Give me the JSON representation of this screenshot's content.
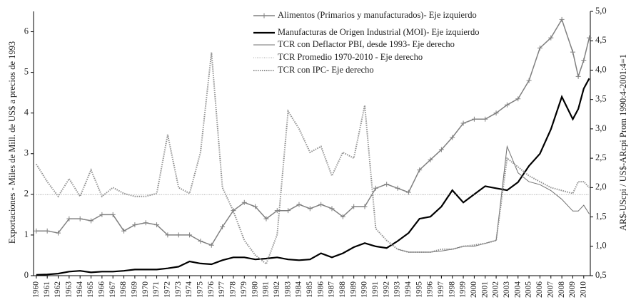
{
  "chart_data": {
    "type": "line",
    "y_label": "Exportaciones - Miles de Mill. de US$ a precios de 1993",
    "y2_label": "AR$-UScpi / US$-ARcpi  Prom 1990:4-2001:4=1",
    "x": [
      1960,
      1961,
      1962,
      1963,
      1964,
      1965,
      1966,
      1967,
      1968,
      1969,
      1970,
      1971,
      1972,
      1973,
      1974,
      1975,
      1976,
      1977,
      1978,
      1979,
      1980,
      1981,
      1982,
      1983,
      1984,
      1985,
      1986,
      1987,
      1988,
      1989,
      1990,
      1991,
      1992,
      1993,
      1994,
      1995,
      1996,
      1997,
      1998,
      1999,
      2000,
      2001,
      2002,
      2003,
      2004,
      2005,
      2006,
      2007,
      2008,
      2009,
      2009.5,
      2010,
      2010.5
    ],
    "xlim": [
      1959.75,
      2010.6
    ],
    "xticks": [
      1960,
      1961,
      1962,
      1963,
      1964,
      1965,
      1966,
      1967,
      1968,
      1969,
      1970,
      1971,
      1972,
      1973,
      1974,
      1975,
      1976,
      1977,
      1978,
      1979,
      1980,
      1981,
      1982,
      1983,
      1984,
      1985,
      1986,
      1987,
      1988,
      1989,
      1990,
      1991,
      1992,
      1993,
      1994,
      1995,
      1996,
      1997,
      1998,
      1999,
      2000,
      2001,
      2002,
      2003,
      2004,
      2005,
      2006,
      2007,
      2008,
      2009,
      2010
    ],
    "ylim": [
      0,
      6.5
    ],
    "yticks": [
      0,
      1,
      2,
      3,
      4,
      5,
      6
    ],
    "y2lim": [
      0.5,
      5
    ],
    "y2ticks": [
      {
        "value": 0.5,
        "label": "0,5"
      },
      {
        "value": 1,
        "label": "1,0"
      },
      {
        "value": 1.5,
        "label": "1,5"
      },
      {
        "value": 2,
        "label": "2,0"
      },
      {
        "value": 2.5,
        "label": "2,5"
      },
      {
        "value": 3,
        "label": "3,0"
      },
      {
        "value": 3.5,
        "label": "3,5"
      },
      {
        "value": 4,
        "label": "4,0"
      },
      {
        "value": 4.5,
        "label": "4,5"
      },
      {
        "value": 5,
        "label": "5,0"
      }
    ],
    "grid": false,
    "legend": "top-right",
    "series": [
      {
        "name": "Alimentos (Primarios y manufacturados)- Eje izquierdo",
        "color": "#808080",
        "style": "solid-plus",
        "values": [
          1.1,
          1.1,
          1.05,
          1.4,
          1.4,
          1.35,
          1.5,
          1.5,
          1.1,
          1.25,
          1.3,
          1.25,
          1.0,
          1.0,
          1.0,
          0.85,
          0.75,
          1.2,
          1.6,
          1.8,
          1.7,
          1.4,
          1.6,
          1.6,
          1.75,
          1.65,
          1.75,
          1.65,
          1.45,
          1.7,
          1.7,
          2.15,
          2.25,
          2.15,
          2.05,
          2.6,
          2.85,
          3.1,
          3.4,
          3.75,
          3.85,
          3.85,
          4.0,
          4.2,
          4.35,
          4.8,
          5.6,
          5.85,
          6.3,
          5.5,
          4.9,
          5.3,
          5.85
        ]
      },
      {
        "name": "Manufacturas de Origen Industrial (MOI)- Eje izquierdo",
        "color": "#000000",
        "style": "thick",
        "values": [
          0.02,
          0.03,
          0.05,
          0.1,
          0.12,
          0.08,
          0.1,
          0.1,
          0.12,
          0.15,
          0.15,
          0.15,
          0.18,
          0.22,
          0.35,
          0.3,
          0.28,
          0.38,
          0.45,
          0.45,
          0.4,
          0.42,
          0.45,
          0.4,
          0.38,
          0.4,
          0.55,
          0.45,
          0.55,
          0.7,
          0.8,
          0.72,
          0.68,
          0.85,
          1.05,
          1.4,
          1.45,
          1.7,
          2.1,
          1.8,
          2.0,
          2.2,
          2.15,
          2.1,
          2.3,
          2.7,
          3.0,
          3.6,
          4.4,
          3.85,
          4.1,
          4.6,
          4.85
        ]
      },
      {
        "name": "TCR con Deflactor PBI, desde 1993- Eje derecho",
        "color": "#707070",
        "style": "thin",
        "axis": "y2",
        "values": [
          null,
          null,
          null,
          null,
          null,
          null,
          null,
          null,
          null,
          null,
          null,
          null,
          null,
          null,
          null,
          null,
          null,
          null,
          null,
          null,
          null,
          null,
          null,
          null,
          null,
          null,
          null,
          null,
          null,
          null,
          null,
          null,
          null,
          0.95,
          0.9,
          0.9,
          0.9,
          0.92,
          0.95,
          1.0,
          1.0,
          1.05,
          1.1,
          2.7,
          2.25,
          2.1,
          2.05,
          1.95,
          1.8,
          1.6,
          1.6,
          1.7,
          1.55
        ]
      },
      {
        "name": "TCR Promedio 1970-2010 - Eje derecho",
        "color": "#909090",
        "style": "fine-dot",
        "axis": "y2",
        "x": [
          1960,
          2010.5
        ],
        "values": [
          1.88,
          1.88
        ]
      },
      {
        "name": "TCR con IPC- Eje derecho",
        "color": "#909090",
        "style": "dotted",
        "axis": "y2",
        "values": [
          2.4,
          2.1,
          1.85,
          2.15,
          1.85,
          2.3,
          1.85,
          2.0,
          1.9,
          1.85,
          1.85,
          1.9,
          2.9,
          2.0,
          1.9,
          2.6,
          4.3,
          2.0,
          1.6,
          1.1,
          0.85,
          0.7,
          1.2,
          3.3,
          3.0,
          2.6,
          2.7,
          2.2,
          2.6,
          2.5,
          3.4,
          1.3,
          1.1,
          0.95,
          0.9,
          0.9,
          0.9,
          0.95,
          0.95,
          1.0,
          1.02,
          1.05,
          1.1,
          2.5,
          2.35,
          2.2,
          2.1,
          2.0,
          1.95,
          1.9,
          2.1,
          2.1,
          2.0
        ]
      }
    ]
  }
}
